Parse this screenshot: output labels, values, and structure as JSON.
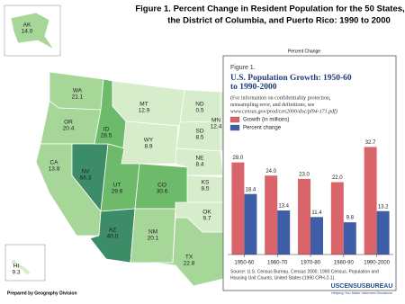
{
  "title": [
    "Figure 1.  Percent Change in Resident Population for the 50 States,",
    "the District of Columbia, and Puerto Rico: 1990 to 2000"
  ],
  "map": {
    "states": [
      {
        "abbr": "AK",
        "value": "14.0"
      },
      {
        "abbr": "HI",
        "value": "9.3"
      },
      {
        "abbr": "WA",
        "value": "21.1"
      },
      {
        "abbr": "OR",
        "value": "20.4"
      },
      {
        "abbr": "CA",
        "value": "13.8"
      },
      {
        "abbr": "NV",
        "value": "66.3"
      },
      {
        "abbr": "ID",
        "value": "28.5"
      },
      {
        "abbr": "MT",
        "value": "12.9"
      },
      {
        "abbr": "WY",
        "value": "8.9"
      },
      {
        "abbr": "UT",
        "value": "29.6"
      },
      {
        "abbr": "CO",
        "value": "30.6"
      },
      {
        "abbr": "AZ",
        "value": "40.0"
      },
      {
        "abbr": "NM",
        "value": "20.1"
      },
      {
        "abbr": "ND",
        "value": "0.5"
      },
      {
        "abbr": "SD",
        "value": "8.5"
      },
      {
        "abbr": "NE",
        "value": "8.4"
      },
      {
        "abbr": "KS",
        "value": "8.5"
      },
      {
        "abbr": "OK",
        "value": "9.7"
      },
      {
        "abbr": "TX",
        "value": "22.8"
      },
      {
        "abbr": "MN",
        "value": "12.4"
      }
    ]
  },
  "inset_header": "Percent Change",
  "chart_data": {
    "type": "bar",
    "label": "Figure 1.",
    "title": [
      "U.S. Population Growth:  1950-60",
      "to 1990-2000"
    ],
    "subtitle": [
      "(For information on confidentiality protection,",
      "nonsampling error, and definitions, see",
      "www.census.gov/prod/cen2000/doc/pl94-171.pdf)"
    ],
    "categories": [
      "1950-60",
      "1960-70",
      "1970-80",
      "1980-90",
      "1990-2000"
    ],
    "series": [
      {
        "name": "Growth (in millions)",
        "color": "#d9646a",
        "values": [
          28.0,
          24.0,
          23.0,
          22.0,
          32.7
        ],
        "value_labels": [
          "28.0",
          "24.0",
          "23.0",
          "22.0",
          "32.7"
        ]
      },
      {
        "name": "Percent change",
        "color": "#3f5ea8",
        "values": [
          18.4,
          13.4,
          11.4,
          9.8,
          13.2
        ],
        "value_labels": [
          "18.4",
          "13.4",
          "11.4",
          "9.8",
          "13.2"
        ]
      }
    ],
    "ylim": [
      0,
      35
    ],
    "source": [
      "Source:  U.S. Census Bureau, Census 2000; 1990 Census, Population and",
      "Housing Unit Counts, United States (1990 CPH-2-1)."
    ]
  },
  "footer": {
    "prepared_by": "Prepared by Geography Division",
    "logo": "USCENSUSBUREAU",
    "tagline": "Helping You Make Informed Decisions"
  }
}
